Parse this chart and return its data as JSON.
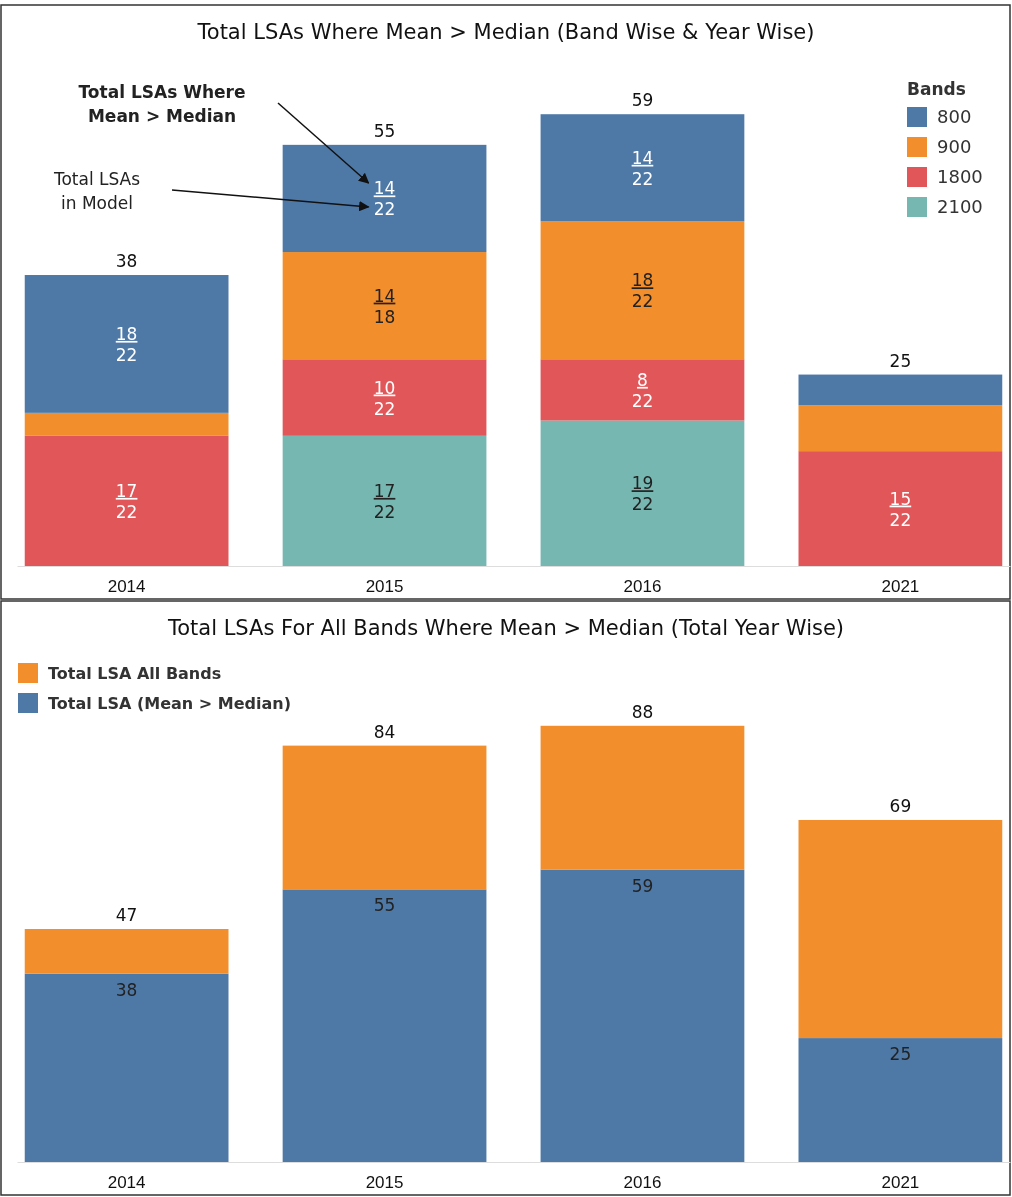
{
  "chart_data": [
    {
      "type": "bar",
      "title": "Total LSAs Where Mean > Median (Band Wise & Year Wise)",
      "legend_title": "Bands",
      "stacked": true,
      "categories": [
        "2014",
        "2015",
        "2016",
        "2021"
      ],
      "tick_labels": "x",
      "legend": "top right",
      "series": [
        {
          "name": "2100",
          "color": "#76b7b2",
          "values": [
            null,
            17,
            19,
            null
          ],
          "value_labels": [
            null,
            "17\n22",
            "19\n22",
            null
          ]
        },
        {
          "name": "1800",
          "color": "#e15759",
          "values": [
            17,
            10,
            8,
            15
          ],
          "value_labels": [
            "17\n22",
            "10\n22",
            "8\n22",
            "15\n22"
          ]
        },
        {
          "name": "900",
          "color": "#f28e2b",
          "values": [
            3,
            14,
            18,
            6
          ],
          "value_labels": [
            null,
            "14\n18",
            "18\n22",
            null
          ]
        },
        {
          "name": "800",
          "color": "#4e79a7",
          "values": [
            18,
            14,
            14,
            4
          ],
          "value_labels": [
            "18\n22",
            "14\n22",
            "14\n22",
            null
          ]
        }
      ],
      "totals": [
        "38",
        "55",
        "59",
        "25"
      ],
      "annotations": [
        "Total LSAs Where Mean > Median",
        "Total LSAs in Model"
      ]
    },
    {
      "type": "bar",
      "title": "Total LSAs For All Bands Where Mean > Median (Total Year Wise)",
      "stacked": true,
      "categories": [
        "2014",
        "2015",
        "2016",
        "2021"
      ],
      "tick_labels": "x",
      "legend": "top left",
      "series": [
        {
          "name": "Total LSA (Mean > Median)",
          "color": "#4e79a7",
          "values": [
            38,
            55,
            59,
            25
          ],
          "value_labels": [
            "38",
            "55",
            "59",
            "25"
          ]
        },
        {
          "name": "Total LSA All Bands",
          "color": "#f28e2b",
          "values": [
            9,
            29,
            29,
            44
          ]
        }
      ],
      "totals": [
        "47",
        "84",
        "88",
        "69"
      ]
    }
  ]
}
